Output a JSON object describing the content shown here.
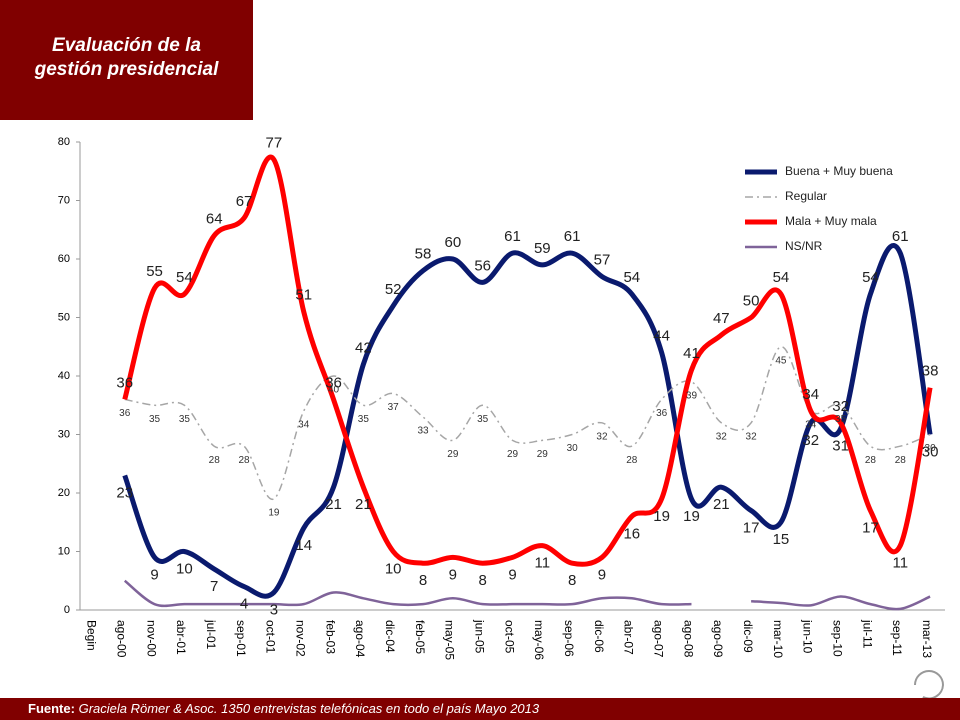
{
  "chart_data": {
    "type": "line",
    "title": "Evaluación de la gestión presidencial",
    "categories": [
      "Begin",
      "ago-00",
      "nov-00",
      "abr-01",
      "jul-01",
      "sep-01",
      "oct-01",
      "nov-02",
      "feb-03",
      "ago-04",
      "dic-04",
      "feb-05",
      "may-05",
      "jun-05",
      "oct-05",
      "may-06",
      "sep-06",
      "dic-06",
      "abr-07",
      "ago-07",
      "ago-08",
      "ago-09",
      "dic-09",
      "mar-10",
      "jun-10",
      "sep-10",
      "jul-11",
      "sep-11",
      "mar-13"
    ],
    "series": [
      {
        "name": "Buena + Muy buena",
        "color": "#0a1a6e",
        "width": 5,
        "dash": "solid",
        "labels": "large",
        "values": [
          null,
          23,
          9,
          10,
          7,
          4,
          3,
          14,
          21,
          42,
          52,
          58,
          60,
          56,
          61,
          59,
          61,
          57,
          54,
          44,
          19,
          21,
          17,
          15,
          32,
          31,
          54,
          61,
          30
        ]
      },
      {
        "name": "Regular",
        "color": "#a6a6a6",
        "width": 1.5,
        "dash": "dashdot",
        "labels": "small",
        "values": [
          null,
          36,
          35,
          35,
          28,
          28,
          19,
          34,
          40,
          35,
          37,
          33,
          29,
          35,
          29,
          29,
          30,
          32,
          28,
          36,
          39,
          32,
          32,
          45,
          34,
          35,
          28,
          28,
          30
        ]
      },
      {
        "name": "Mala + Muy mala",
        "color": "#ff0000",
        "width": 5,
        "dash": "solid",
        "labels": "large",
        "values": [
          null,
          36,
          55,
          54,
          64,
          67,
          77,
          51,
          36,
          21,
          10,
          8,
          9,
          8,
          9,
          11,
          8,
          9,
          16,
          19,
          41,
          47,
          50,
          54,
          34,
          32,
          17,
          11,
          38
        ]
      },
      {
        "name": "NS/NR",
        "color": "#7f6399",
        "width": 2.5,
        "dash": "solid",
        "labels": "none",
        "values": [
          null,
          5,
          1,
          1,
          1,
          1,
          1,
          1,
          3,
          2,
          1,
          1,
          2,
          1,
          1,
          1,
          1,
          2,
          2,
          1,
          1,
          null,
          1.5,
          1.2,
          0.8,
          2.3,
          1,
          0.2,
          2.3
        ]
      }
    ],
    "ylim": [
      0,
      80
    ],
    "yticks": [
      0,
      10,
      20,
      30,
      40,
      50,
      60,
      70,
      80
    ],
    "grid": false,
    "legend": "top-right"
  },
  "footer": {
    "label": "Fuente:",
    "text": "Graciela Römer & Asoc. 1350 entrevistas telefónicas en todo el país  Mayo 2013"
  }
}
